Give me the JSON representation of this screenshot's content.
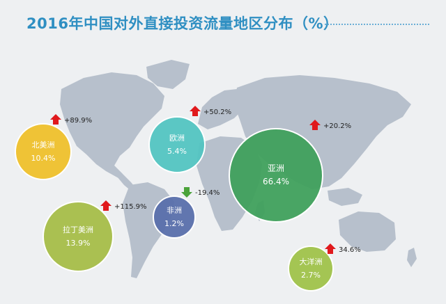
{
  "title": "2016年中国对外直接投资流量地区分布（%）",
  "colors": {
    "background": "#eef0f2",
    "land": "#b7c0cc",
    "title": "#2f8fc2",
    "arrow_up": "#e0191c",
    "arrow_down": "#4aa33a",
    "growth_text": "#222222"
  },
  "chart_data": {
    "type": "bubble-map",
    "unit": "%",
    "regions": [
      {
        "name": "北美洲",
        "share": 10.4,
        "share_label": "10.4%",
        "change": 89.9,
        "change_label": "+89.9%",
        "direction": "up",
        "color": "#eec02b"
      },
      {
        "name": "欧洲",
        "share": 5.4,
        "share_label": "5.4%",
        "change": 50.2,
        "change_label": "+50.2%",
        "direction": "up",
        "color": "#52c4c1"
      },
      {
        "name": "亚洲",
        "share": 66.4,
        "share_label": "66.4%",
        "change": 20.2,
        "change_label": "+20.2%",
        "direction": "up",
        "color": "#3fa05c"
      },
      {
        "name": "非洲",
        "share": 1.2,
        "share_label": "1.2%",
        "change": -19.4,
        "change_label": "-19.4%",
        "direction": "down",
        "color": "#596fab"
      },
      {
        "name": "拉丁美洲",
        "share": 13.9,
        "share_label": "13.9%",
        "change": 115.9,
        "change_label": "+115.9%",
        "direction": "up",
        "color": "#a5bd48"
      },
      {
        "name": "大洋洲",
        "share": 2.7,
        "share_label": "2.7%",
        "change": 34.6,
        "change_label": "34.6%",
        "direction": "up",
        "color": "#9fc24a"
      }
    ]
  }
}
